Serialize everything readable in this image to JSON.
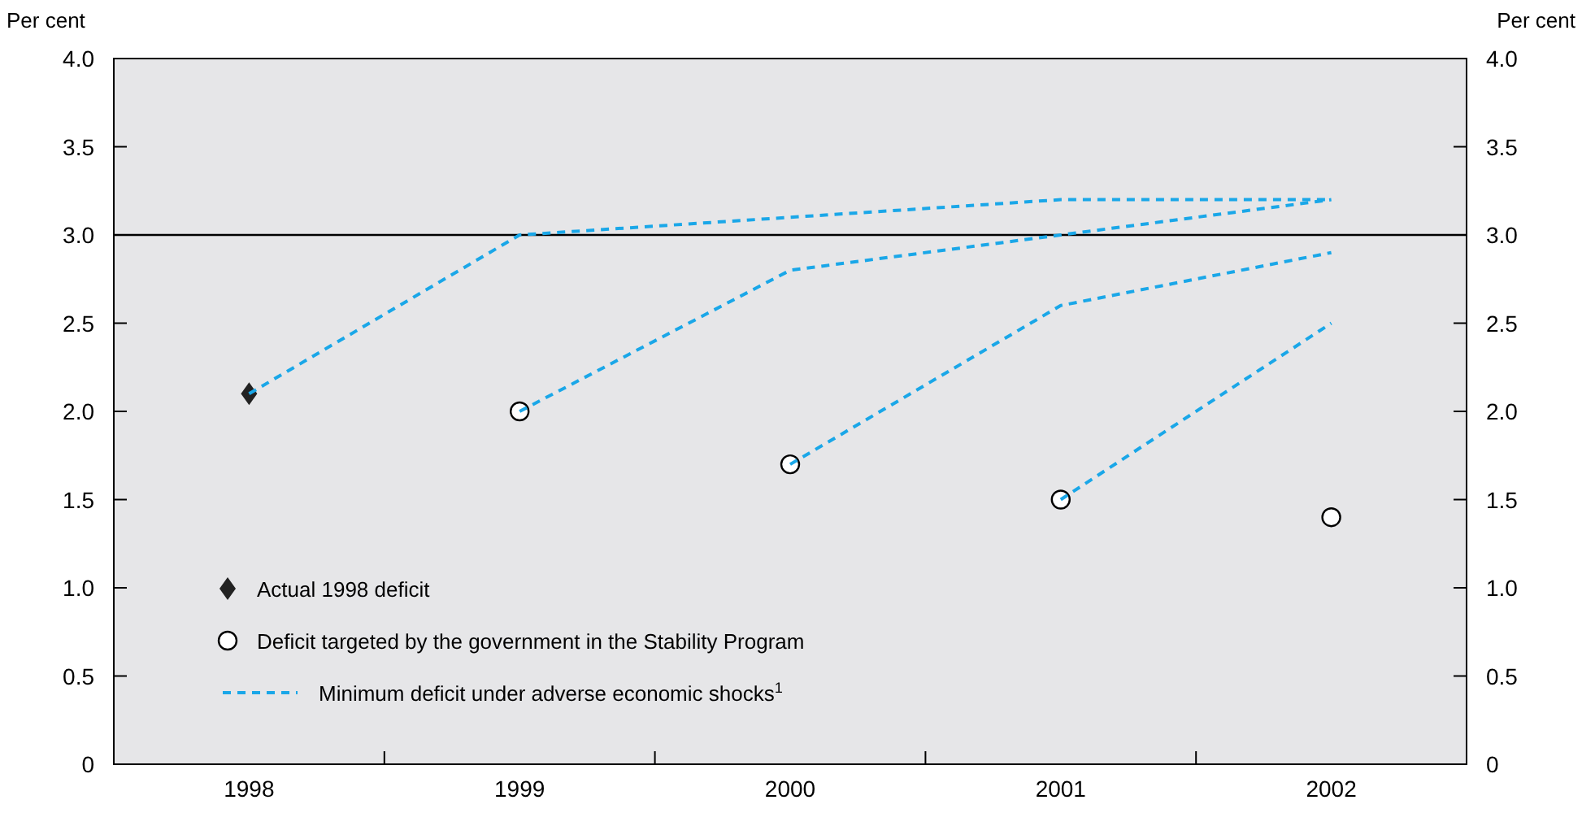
{
  "chart_data": {
    "type": "line",
    "ylabel": "Per cent",
    "y2label": "Per cent",
    "categories": [
      "1998",
      "1999",
      "2000",
      "2001",
      "2002"
    ],
    "ylim": [
      0,
      4
    ],
    "yticks": [
      {
        "value": 0,
        "label": "0"
      },
      {
        "value": 0.5,
        "label": "0.5"
      },
      {
        "value": 1,
        "label": "1.0"
      },
      {
        "value": 1.5,
        "label": "1.5"
      },
      {
        "value": 2,
        "label": "2.0"
      },
      {
        "value": 2.5,
        "label": "2.5"
      },
      {
        "value": 3,
        "label": "3.0"
      },
      {
        "value": 3.5,
        "label": "3.5"
      },
      {
        "value": 4,
        "label": "4.0"
      }
    ],
    "y2lim": [
      0,
      4
    ],
    "y2ticks": [
      {
        "value": 0,
        "label": "0"
      },
      {
        "value": 0.5,
        "label": "0.5"
      },
      {
        "value": 1,
        "label": "1.0"
      },
      {
        "value": 1.5,
        "label": "1.5"
      },
      {
        "value": 2,
        "label": "2.0"
      },
      {
        "value": 2.5,
        "label": "2.5"
      },
      {
        "value": 3,
        "label": "3.0"
      },
      {
        "value": 3.5,
        "label": "3.5"
      },
      {
        "value": 4,
        "label": "4.0"
      }
    ],
    "grid": false,
    "legend": "bottom left",
    "ref_lines": [
      {
        "axis": "y",
        "value": 3,
        "color": "#000000",
        "line_style": "solid"
      }
    ],
    "series": [
      {
        "name": "Actual 1998 deficit",
        "type": "scatter",
        "marker": "diamond",
        "color": "#222222",
        "values": [
          2.1,
          null,
          null,
          null,
          null
        ]
      },
      {
        "name": "Deficit targeted by the government in the Stability Program",
        "type": "scatter",
        "marker": "circle",
        "color": "#000000",
        "values": [
          null,
          2.0,
          1.7,
          1.5,
          1.4
        ]
      },
      {
        "name": "Minimum deficit under adverse economic shocks$^{1}$",
        "line_style": "dashed",
        "marker": "none",
        "color": "#1aa7e8",
        "values": [
          2.1,
          3.0,
          3.1,
          3.2,
          3.2
        ]
      },
      {
        "line_style": "dashed",
        "marker": "none",
        "color": "#1aa7e8",
        "values": [
          null,
          2.0,
          2.8,
          3.0,
          3.2
        ]
      },
      {
        "line_style": "dashed",
        "marker": "none",
        "color": "#1aa7e8",
        "values": [
          null,
          null,
          1.7,
          2.6,
          2.9
        ]
      },
      {
        "line_style": "dashed",
        "marker": "none",
        "color": "#1aa7e8",
        "values": [
          null,
          null,
          null,
          1.5,
          2.5
        ]
      }
    ]
  }
}
